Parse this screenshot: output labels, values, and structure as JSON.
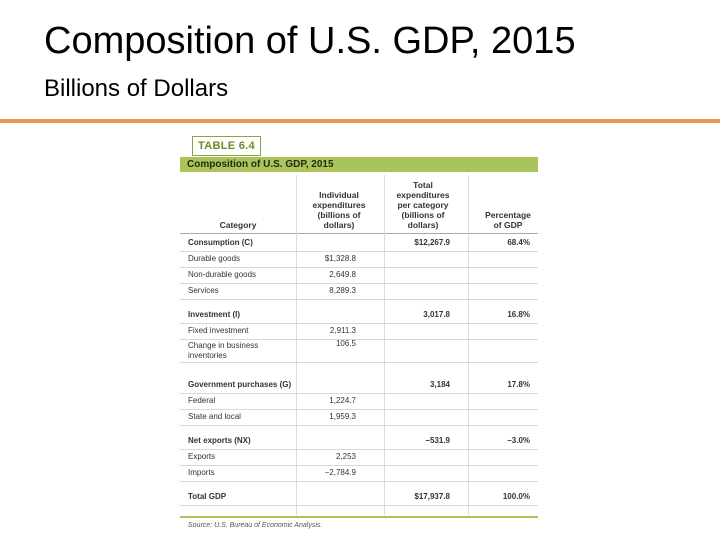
{
  "slide": {
    "title": "Composition of U.S. GDP, 2015",
    "subtitle": "Billions of Dollars",
    "accent_color": "#e49a54"
  },
  "table": {
    "label": "TABLE 6.4",
    "caption": "Composition of U.S. GDP, 2015",
    "header_color": "#a9c45a",
    "headers": {
      "category": "Category",
      "individual": "Individual\nexpenditures\n(billions of\ndollars)",
      "total": "Total\nexpenditures\nper category\n(billions of\ndollars)",
      "percentage": "Percentage\nof GDP"
    },
    "rows": [
      {
        "category": "Consumption (C)",
        "individual": "",
        "total": "$12,267.9",
        "percentage": "68.4%",
        "bold": true
      },
      {
        "category": "Durable goods",
        "individual": "$1,328.8",
        "total": "",
        "percentage": ""
      },
      {
        "category": "Non-durable goods",
        "individual": "2,649.8",
        "total": "",
        "percentage": ""
      },
      {
        "category": "Services",
        "individual": "8,289.3",
        "total": "",
        "percentage": ""
      },
      {
        "category": "Investment (I)",
        "individual": "",
        "total": "3,017.8",
        "percentage": "16.8%",
        "bold": true
      },
      {
        "category": "Fixed investment",
        "individual": "2,911.3",
        "total": "",
        "percentage": ""
      },
      {
        "category": "Change in business\n  inventories",
        "individual": "106.5",
        "total": "",
        "percentage": ""
      },
      {
        "category": "Government purchases (G)",
        "individual": "",
        "total": "3,184",
        "percentage": "17.8%",
        "bold": true
      },
      {
        "category": "Federal",
        "individual": "1,224.7",
        "total": "",
        "percentage": ""
      },
      {
        "category": "State and local",
        "individual": "1,959.3",
        "total": "",
        "percentage": ""
      },
      {
        "category": "Net exports (NX)",
        "individual": "",
        "total": "−531.9",
        "percentage": "−3.0%",
        "bold": true
      },
      {
        "category": "Exports",
        "individual": "2,253",
        "total": "",
        "percentage": ""
      },
      {
        "category": "Imports",
        "individual": "−2,784.9",
        "total": "",
        "percentage": ""
      },
      {
        "category": "Total GDP",
        "individual": "",
        "total": "$17,937.8",
        "percentage": "100.0%",
        "bold": true
      }
    ],
    "source": "Source: U.S. Bureau of Economic Analysis."
  }
}
